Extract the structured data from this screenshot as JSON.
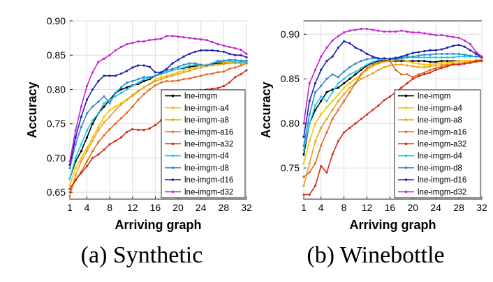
{
  "colors": {
    "lne-imgm": "#000000",
    "lne-imgm-a4": "#f5c400",
    "lne-imgm-a8": "#eda020",
    "lne-imgm-a16": "#e2691e",
    "lne-imgm-a32": "#d22a15",
    "lne-imgm-d4": "#1ccbe8",
    "lne-imgm-d8": "#2e8ad8",
    "lne-imgm-d16": "#1b1fb0",
    "lne-imgm-d32": "#c820d8"
  },
  "chart_data": [
    {
      "type": "line",
      "caption": "(a) Synthetic",
      "xlabel": "Arriving graph",
      "ylabel": "Accuracy",
      "xlim": [
        1,
        32
      ],
      "ylim": [
        0.64,
        0.9
      ],
      "xticks": [
        1,
        4,
        8,
        12,
        16,
        20,
        24,
        28,
        32
      ],
      "yticks": [
        0.65,
        0.7,
        0.75,
        0.8,
        0.85,
        0.9
      ],
      "ytick_labels": [
        "0.65",
        "0.70",
        "0.75",
        "0.80",
        "0.85",
        "0.90"
      ],
      "legend": "bottom-right",
      "x": [
        1,
        2,
        3,
        4,
        5,
        6,
        7,
        8,
        9,
        10,
        11,
        12,
        13,
        14,
        15,
        16,
        17,
        18,
        19,
        20,
        21,
        22,
        23,
        24,
        25,
        26,
        27,
        28,
        29,
        30,
        31,
        32
      ],
      "series": [
        {
          "name": "lne-imgm",
          "values": [
            0.67,
            0.695,
            0.71,
            0.73,
            0.75,
            0.765,
            0.775,
            0.785,
            0.795,
            0.8,
            0.803,
            0.806,
            0.808,
            0.812,
            0.815,
            0.82,
            0.823,
            0.825,
            0.828,
            0.83,
            0.831,
            0.833,
            0.834,
            0.835,
            0.836,
            0.837,
            0.838,
            0.839,
            0.84,
            0.84,
            0.84,
            0.84
          ]
        },
        {
          "name": "lne-imgm-a4",
          "values": [
            0.66,
            0.685,
            0.7,
            0.715,
            0.73,
            0.745,
            0.76,
            0.77,
            0.775,
            0.78,
            0.785,
            0.79,
            0.797,
            0.803,
            0.808,
            0.815,
            0.818,
            0.82,
            0.822,
            0.825,
            0.828,
            0.83,
            0.832,
            0.835,
            0.836,
            0.838,
            0.84,
            0.84,
            0.84,
            0.84,
            0.84,
            0.84
          ]
        },
        {
          "name": "lne-imgm-a8",
          "values": [
            0.645,
            0.675,
            0.695,
            0.71,
            0.725,
            0.74,
            0.752,
            0.76,
            0.77,
            0.778,
            0.785,
            0.792,
            0.798,
            0.803,
            0.808,
            0.812,
            0.815,
            0.818,
            0.82,
            0.822,
            0.825,
            0.827,
            0.83,
            0.832,
            0.834,
            0.835,
            0.836,
            0.837,
            0.838,
            0.838,
            0.838,
            0.838
          ]
        },
        {
          "name": "lne-imgm-a16",
          "values": [
            0.65,
            0.668,
            0.68,
            0.695,
            0.71,
            0.723,
            0.733,
            0.742,
            0.75,
            0.758,
            0.766,
            0.775,
            0.785,
            0.793,
            0.8,
            0.806,
            0.81,
            0.812,
            0.812,
            0.813,
            0.815,
            0.816,
            0.818,
            0.82,
            0.822,
            0.823,
            0.825,
            0.826,
            0.83,
            0.832,
            0.835,
            0.838
          ]
        },
        {
          "name": "lne-imgm-a32",
          "values": [
            0.655,
            0.668,
            0.678,
            0.688,
            0.7,
            0.705,
            0.712,
            0.72,
            0.725,
            0.73,
            0.738,
            0.742,
            0.741,
            0.741,
            0.743,
            0.748,
            0.755,
            0.765,
            0.775,
            0.785,
            0.79,
            0.795,
            0.797,
            0.799,
            0.8,
            0.801,
            0.802,
            0.805,
            0.81,
            0.818,
            0.822,
            0.828
          ]
        },
        {
          "name": "lne-imgm-d4",
          "values": [
            0.67,
            0.7,
            0.72,
            0.74,
            0.755,
            0.765,
            0.78,
            0.785,
            0.79,
            0.795,
            0.8,
            0.805,
            0.81,
            0.815,
            0.817,
            0.82,
            0.822,
            0.825,
            0.828,
            0.83,
            0.832,
            0.835,
            0.836,
            0.835,
            0.835,
            0.838,
            0.842,
            0.842,
            0.842,
            0.84,
            0.84,
            0.84
          ]
        },
        {
          "name": "lne-imgm-d8",
          "values": [
            0.685,
            0.72,
            0.745,
            0.765,
            0.775,
            0.782,
            0.79,
            0.78,
            0.795,
            0.803,
            0.81,
            0.812,
            0.815,
            0.818,
            0.818,
            0.82,
            0.825,
            0.828,
            0.83,
            0.833,
            0.836,
            0.838,
            0.838,
            0.836,
            0.835,
            0.838,
            0.84,
            0.842,
            0.843,
            0.843,
            0.842,
            0.842
          ]
        },
        {
          "name": "lne-imgm-d16",
          "values": [
            0.69,
            0.73,
            0.76,
            0.785,
            0.8,
            0.812,
            0.82,
            0.82,
            0.82,
            0.823,
            0.827,
            0.832,
            0.835,
            0.835,
            0.833,
            0.825,
            0.825,
            0.83,
            0.838,
            0.843,
            0.848,
            0.852,
            0.855,
            0.857,
            0.857,
            0.857,
            0.856,
            0.855,
            0.852,
            0.85,
            0.85,
            0.847
          ]
        },
        {
          "name": "lne-imgm-d32",
          "values": [
            0.695,
            0.74,
            0.775,
            0.805,
            0.825,
            0.84,
            0.845,
            0.85,
            0.857,
            0.862,
            0.866,
            0.868,
            0.87,
            0.87,
            0.872,
            0.873,
            0.874,
            0.878,
            0.878,
            0.877,
            0.876,
            0.875,
            0.874,
            0.873,
            0.872,
            0.869,
            0.866,
            0.864,
            0.862,
            0.86,
            0.858,
            0.852
          ]
        }
      ]
    },
    {
      "type": "line",
      "caption": "(b) Winebottle",
      "xlabel": "Arriving graph",
      "ylabel": "Accuracy",
      "xlim": [
        1,
        32
      ],
      "ylim": [
        0.715,
        0.915
      ],
      "xticks": [
        1,
        4,
        8,
        12,
        16,
        20,
        24,
        28,
        32
      ],
      "yticks": [
        0.75,
        0.8,
        0.85,
        0.9
      ],
      "ytick_labels": [
        "0.75",
        "0.80",
        "0.85",
        "0.90"
      ],
      "legend": "bottom-right",
      "x": [
        1,
        2,
        3,
        4,
        5,
        6,
        7,
        8,
        9,
        10,
        11,
        12,
        13,
        14,
        15,
        16,
        17,
        18,
        19,
        20,
        21,
        22,
        23,
        24,
        25,
        26,
        27,
        28,
        29,
        30,
        31,
        32
      ],
      "series": [
        {
          "name": "lne-imgm",
          "values": [
            0.765,
            0.8,
            0.815,
            0.825,
            0.835,
            0.838,
            0.84,
            0.845,
            0.85,
            0.855,
            0.86,
            0.865,
            0.868,
            0.87,
            0.871,
            0.87,
            0.87,
            0.87,
            0.87,
            0.87,
            0.87,
            0.87,
            0.869,
            0.869,
            0.87,
            0.87,
            0.87,
            0.87,
            0.87,
            0.87,
            0.87,
            0.871
          ]
        },
        {
          "name": "lne-imgm-a4",
          "values": [
            0.755,
            0.78,
            0.8,
            0.81,
            0.818,
            0.825,
            0.832,
            0.84,
            0.845,
            0.85,
            0.855,
            0.86,
            0.864,
            0.867,
            0.869,
            0.87,
            0.871,
            0.872,
            0.87,
            0.868,
            0.867,
            0.866,
            0.866,
            0.867,
            0.868,
            0.868,
            0.869,
            0.87,
            0.87,
            0.87,
            0.871,
            0.872
          ]
        },
        {
          "name": "lne-imgm-a8",
          "values": [
            0.73,
            0.755,
            0.78,
            0.795,
            0.805,
            0.815,
            0.825,
            0.833,
            0.84,
            0.845,
            0.85,
            0.853,
            0.856,
            0.86,
            0.863,
            0.865,
            0.866,
            0.866,
            0.865,
            0.864,
            0.863,
            0.863,
            0.864,
            0.865,
            0.866,
            0.866,
            0.867,
            0.868,
            0.868,
            0.869,
            0.87,
            0.87
          ]
        },
        {
          "name": "lne-imgm-a16",
          "values": [
            0.74,
            0.745,
            0.755,
            0.775,
            0.79,
            0.805,
            0.815,
            0.825,
            0.835,
            0.845,
            0.855,
            0.862,
            0.866,
            0.868,
            0.87,
            0.87,
            0.86,
            0.855,
            0.855,
            0.852,
            0.855,
            0.857,
            0.86,
            0.862,
            0.864,
            0.865,
            0.866,
            0.866,
            0.867,
            0.868,
            0.869,
            0.87
          ]
        },
        {
          "name": "lne-imgm-a32",
          "values": [
            0.72,
            0.72,
            0.73,
            0.752,
            0.745,
            0.765,
            0.78,
            0.79,
            0.795,
            0.8,
            0.805,
            0.81,
            0.815,
            0.82,
            0.826,
            0.83,
            0.835,
            0.84,
            0.845,
            0.85,
            0.853,
            0.855,
            0.857,
            0.86,
            0.862,
            0.864,
            0.866,
            0.866,
            0.867,
            0.868,
            0.87,
            0.87
          ]
        },
        {
          "name": "lne-imgm-d4",
          "values": [
            0.77,
            0.8,
            0.82,
            0.83,
            0.825,
            0.835,
            0.845,
            0.85,
            0.855,
            0.858,
            0.862,
            0.866,
            0.869,
            0.871,
            0.872,
            0.873,
            0.874,
            0.874,
            0.875,
            0.874,
            0.874,
            0.874,
            0.874,
            0.874,
            0.874,
            0.874,
            0.874,
            0.875,
            0.875,
            0.875,
            0.875,
            0.874
          ]
        },
        {
          "name": "lne-imgm-d8",
          "values": [
            0.775,
            0.81,
            0.835,
            0.842,
            0.85,
            0.855,
            0.852,
            0.858,
            0.863,
            0.867,
            0.87,
            0.872,
            0.873,
            0.873,
            0.873,
            0.872,
            0.872,
            0.873,
            0.874,
            0.875,
            0.876,
            0.877,
            0.877,
            0.878,
            0.878,
            0.878,
            0.878,
            0.878,
            0.877,
            0.876,
            0.875,
            0.875
          ]
        },
        {
          "name": "lne-imgm-d16",
          "values": [
            0.785,
            0.825,
            0.845,
            0.86,
            0.87,
            0.875,
            0.885,
            0.892,
            0.89,
            0.885,
            0.882,
            0.878,
            0.875,
            0.873,
            0.873,
            0.872,
            0.873,
            0.875,
            0.877,
            0.879,
            0.88,
            0.881,
            0.882,
            0.882,
            0.883,
            0.885,
            0.887,
            0.888,
            0.886,
            0.882,
            0.878,
            0.874
          ]
        },
        {
          "name": "lne-imgm-d32",
          "values": [
            0.8,
            0.845,
            0.86,
            0.875,
            0.885,
            0.893,
            0.898,
            0.902,
            0.904,
            0.905,
            0.906,
            0.906,
            0.905,
            0.904,
            0.903,
            0.903,
            0.903,
            0.904,
            0.903,
            0.902,
            0.902,
            0.901,
            0.9,
            0.899,
            0.899,
            0.898,
            0.897,
            0.896,
            0.893,
            0.889,
            0.88,
            0.875
          ]
        }
      ]
    }
  ]
}
